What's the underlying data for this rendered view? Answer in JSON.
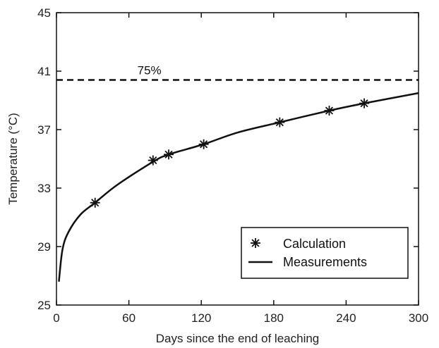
{
  "chart_data": {
    "type": "line",
    "title": "",
    "xlabel": "Days since the end of leaching",
    "ylabel": "Temperature (°C)",
    "xlim": [
      0,
      300
    ],
    "ylim": [
      25,
      45
    ],
    "x_ticks": [
      0,
      60,
      120,
      180,
      240,
      300
    ],
    "y_ticks": [
      25,
      29,
      33,
      37,
      41,
      45
    ],
    "grid": false,
    "legend": "bottom-right",
    "reference_line": {
      "y": 40.4,
      "label": "75%",
      "style": "dashed"
    },
    "series": [
      {
        "name": "Calculation",
        "marker": "asterisk",
        "x": [
          32,
          80,
          93,
          122,
          185,
          226,
          255
        ],
        "y": [
          32.0,
          34.9,
          35.3,
          36.0,
          37.5,
          38.3,
          38.8
        ]
      },
      {
        "name": "Measurements",
        "style": "solid",
        "x": [
          2,
          5,
          10,
          20,
          32,
          50,
          80,
          93,
          122,
          150,
          185,
          226,
          255,
          300
        ],
        "y": [
          26.6,
          28.8,
          30.0,
          31.2,
          32.0,
          33.2,
          34.8,
          35.3,
          36.0,
          36.8,
          37.5,
          38.3,
          38.8,
          39.5
        ]
      }
    ]
  }
}
